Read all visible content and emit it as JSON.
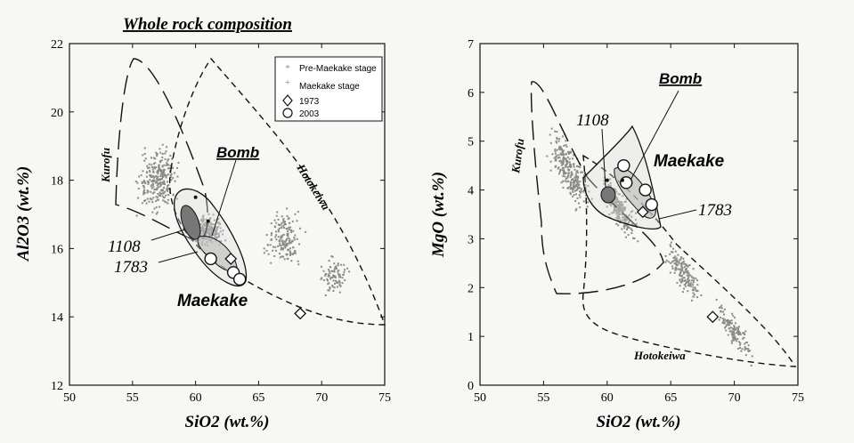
{
  "figure_title": "Whole rock composition",
  "chart_data": [
    {
      "type": "scatter",
      "xlabel": "SiO2 (wt.%)",
      "ylabel": "Al2O3 (wt.%)",
      "xlim": [
        50,
        75
      ],
      "ylim": [
        12,
        22
      ],
      "x_ticks": [
        "50",
        "55",
        "60",
        "65",
        "70",
        "75"
      ],
      "y_ticks": [
        "12",
        "14",
        "16",
        "18",
        "20",
        "22"
      ],
      "legend": {
        "position": "top-right",
        "entries": [
          "Pre-Maekake stage",
          "Maekake stage",
          "1973",
          "2003"
        ]
      },
      "annotations": [
        "Kurofu",
        "Hotokeiwa",
        "Maekake",
        "Bomb",
        "1108",
        "1783"
      ],
      "series": [
        {
          "name": "1973",
          "marker": "diamond",
          "points": [
            [
              62.8,
              15.7
            ],
            [
              68.3,
              14.1
            ]
          ]
        },
        {
          "name": "2003",
          "marker": "circle",
          "points": [
            [
              61.2,
              15.7
            ],
            [
              63.0,
              15.3
            ],
            [
              63.5,
              15.1
            ]
          ]
        },
        {
          "name": "Bomb",
          "marker": "star",
          "points": [
            [
              60.0,
              17.5
            ],
            [
              61.0,
              16.8
            ]
          ]
        }
      ]
    },
    {
      "type": "scatter",
      "xlabel": "SiO2 (wt.%)",
      "ylabel": "MgO (wt.%)",
      "xlim": [
        50,
        75
      ],
      "ylim": [
        0,
        7
      ],
      "x_ticks": [
        "50",
        "55",
        "60",
        "65",
        "70",
        "75"
      ],
      "y_ticks": [
        "0",
        "1",
        "2",
        "3",
        "4",
        "5",
        "6",
        "7"
      ],
      "annotations": [
        "Kurofu",
        "Hotokeiwa",
        "Maekake",
        "Bomb",
        "1108",
        "1783"
      ],
      "series": [
        {
          "name": "1973",
          "marker": "diamond",
          "points": [
            [
              62.8,
              3.55
            ],
            [
              68.3,
              1.4
            ]
          ]
        },
        {
          "name": "2003",
          "marker": "circle",
          "points": [
            [
              61.3,
              4.5
            ],
            [
              61.5,
              4.15
            ],
            [
              63.0,
              4.0
            ],
            [
              63.5,
              3.7
            ]
          ]
        },
        {
          "name": "Bomb",
          "marker": "star",
          "points": [
            [
              60.0,
              4.2
            ],
            [
              61.2,
              4.2
            ]
          ]
        }
      ]
    }
  ]
}
